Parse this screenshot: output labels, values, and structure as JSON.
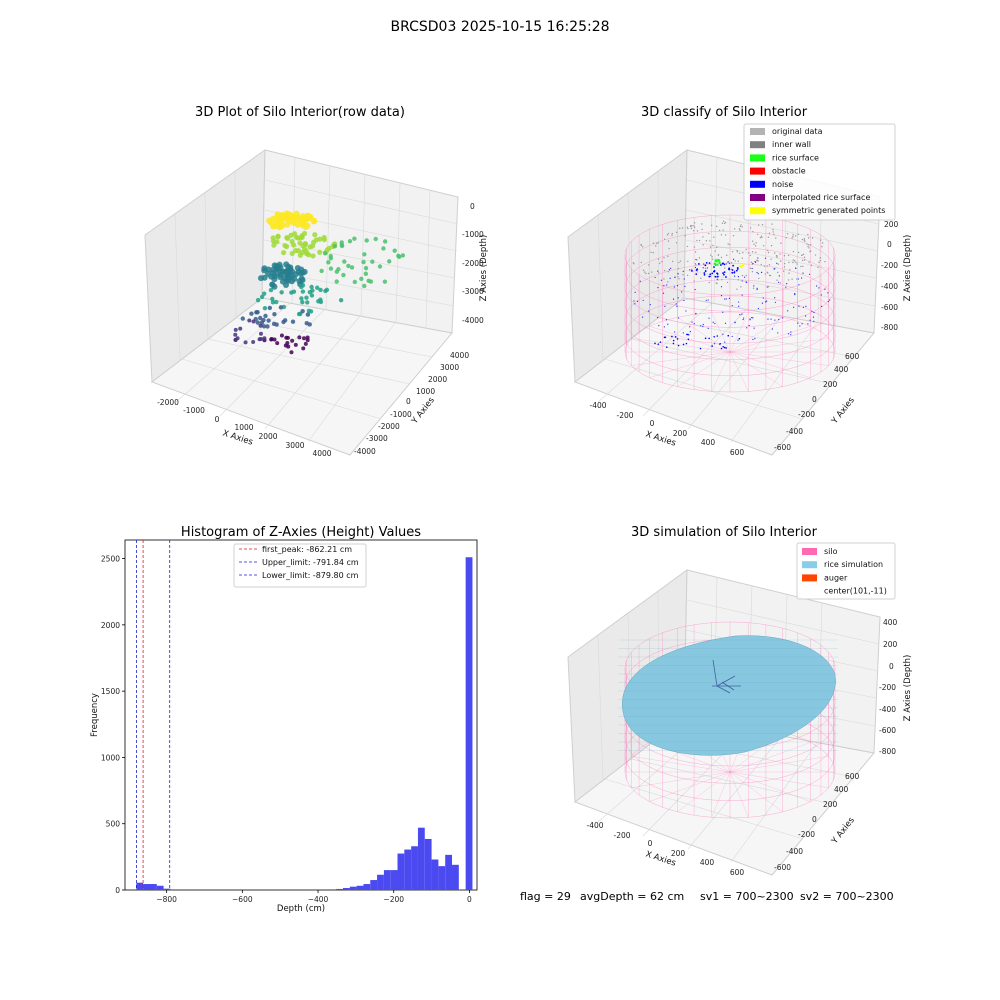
{
  "suptitle": "BRCSD03 2025-10-15 16:25:28",
  "colors": {
    "hist_bar": "#4a4af0",
    "first_peak": "#e41a1c",
    "limits": "#1f1fd0",
    "silo_wire": "#ff77bb",
    "rice_surface": "#87c7df",
    "pane": "#f2f2f2",
    "grid": "#d0d0d0"
  },
  "chart_data": [
    {
      "type": "scatter3d",
      "title": "3D Plot of Silo Interior(row data)",
      "xlabel": "X Axies",
      "ylabel": "Y Axies",
      "zlabel": "Z Axies (Depth)",
      "xticks": [
        "-2000",
        "-1000",
        "0",
        "1000",
        "2000",
        "3000",
        "4000"
      ],
      "yticks": [
        "4000",
        "3000",
        "2000",
        "1000",
        "0",
        "-1000",
        "-2000",
        "-3000",
        "-4000"
      ],
      "zticks": [
        "0",
        "-1000",
        "-2000",
        "-3000",
        "-4000"
      ],
      "colormap": "viridis (colored by depth)"
    },
    {
      "type": "scatter3d",
      "title": "3D classify of Silo Interior",
      "xlabel": "X Axies",
      "ylabel": "Y Axies",
      "zlabel": "Z Axies (Depth)",
      "xticks": [
        "-400",
        "-200",
        "0",
        "200",
        "400",
        "600"
      ],
      "yticks": [
        "600",
        "400",
        "200",
        "0",
        "-200",
        "-400",
        "-600"
      ],
      "zticks": [
        "200",
        "0",
        "-200",
        "-400",
        "-600",
        "-800"
      ],
      "legend": {
        "position": "top-right",
        "items": [
          {
            "label": "original data",
            "color": "#b3b3b3"
          },
          {
            "label": "inner wall",
            "color": "#808080"
          },
          {
            "label": "rice surface",
            "color": "#1aff1a"
          },
          {
            "label": "obstacle",
            "color": "#ff0000"
          },
          {
            "label": "noise",
            "color": "#0000ff"
          },
          {
            "label": "interpolated rice surface",
            "color": "#800080"
          },
          {
            "label": "symmetric generated points",
            "color": "#ffff00"
          }
        ]
      }
    },
    {
      "type": "histogram",
      "title": "Histogram of Z-Axies (Height) Values",
      "xlabel": "Depth (cm)",
      "ylabel": "Frequency",
      "xlim": [
        -910,
        20
      ],
      "ylim": [
        0,
        2640
      ],
      "xticks": [
        -800,
        -600,
        -400,
        -200,
        0
      ],
      "yticks": [
        0,
        500,
        1000,
        1500,
        2000,
        2500
      ],
      "bin_width": 18,
      "bins": [
        {
          "x0": -880,
          "count": 55
        },
        {
          "x0": -862,
          "count": 45
        },
        {
          "x0": -844,
          "count": 45
        },
        {
          "x0": -826,
          "count": 32
        },
        {
          "x0": -808,
          "count": 10
        },
        {
          "x0": -370,
          "count": 5
        },
        {
          "x0": -352,
          "count": 8
        },
        {
          "x0": -334,
          "count": 15
        },
        {
          "x0": -316,
          "count": 25
        },
        {
          "x0": -298,
          "count": 32
        },
        {
          "x0": -280,
          "count": 45
        },
        {
          "x0": -262,
          "count": 75
        },
        {
          "x0": -244,
          "count": 115
        },
        {
          "x0": -226,
          "count": 150
        },
        {
          "x0": -208,
          "count": 150
        },
        {
          "x0": -190,
          "count": 275
        },
        {
          "x0": -172,
          "count": 305
        },
        {
          "x0": -154,
          "count": 330
        },
        {
          "x0": -136,
          "count": 470
        },
        {
          "x0": -118,
          "count": 385
        },
        {
          "x0": -100,
          "count": 230
        },
        {
          "x0": -82,
          "count": 180
        },
        {
          "x0": -64,
          "count": 265
        },
        {
          "x0": -46,
          "count": 190
        },
        {
          "x0": -10,
          "count": 2510
        }
      ],
      "vlines": [
        {
          "x": -862.21,
          "label": "first_peak: -862.21 cm",
          "style": "red"
        },
        {
          "x": -791.84,
          "label": "Upper_limit: -791.84 cm",
          "style": "blue"
        },
        {
          "x": -879.8,
          "label": "Lower_limit: -879.80 cm",
          "style": "blue"
        }
      ],
      "legend": {
        "position": "top-center"
      }
    },
    {
      "type": "surface3d",
      "title": "3D simulation of Silo Interior",
      "xlabel": "X Axies",
      "ylabel": "Y Axies",
      "zlabel": "Z Axies (Depth)",
      "xticks": [
        "-400",
        "-200",
        "0",
        "200",
        "400",
        "600"
      ],
      "yticks": [
        "600",
        "400",
        "200",
        "0",
        "-200",
        "-400",
        "-600"
      ],
      "zticks": [
        "400",
        "200",
        "0",
        "-200",
        "-400",
        "-600",
        "-800"
      ],
      "legend": {
        "position": "top-right",
        "items": [
          {
            "label": "silo",
            "color": "#ff69b4"
          },
          {
            "label": "rice simulation",
            "color": "#87ceeb"
          },
          {
            "label": "auger",
            "color": "#ff4500"
          },
          {
            "label": "center(101,-11)",
            "color": ""
          }
        ]
      }
    }
  ],
  "footer": {
    "flag": "flag = 29",
    "avg_depth": "avgDepth = 62 cm",
    "sv1": "sv1 = 700~2300",
    "sv2": "sv2 = 700~2300"
  }
}
